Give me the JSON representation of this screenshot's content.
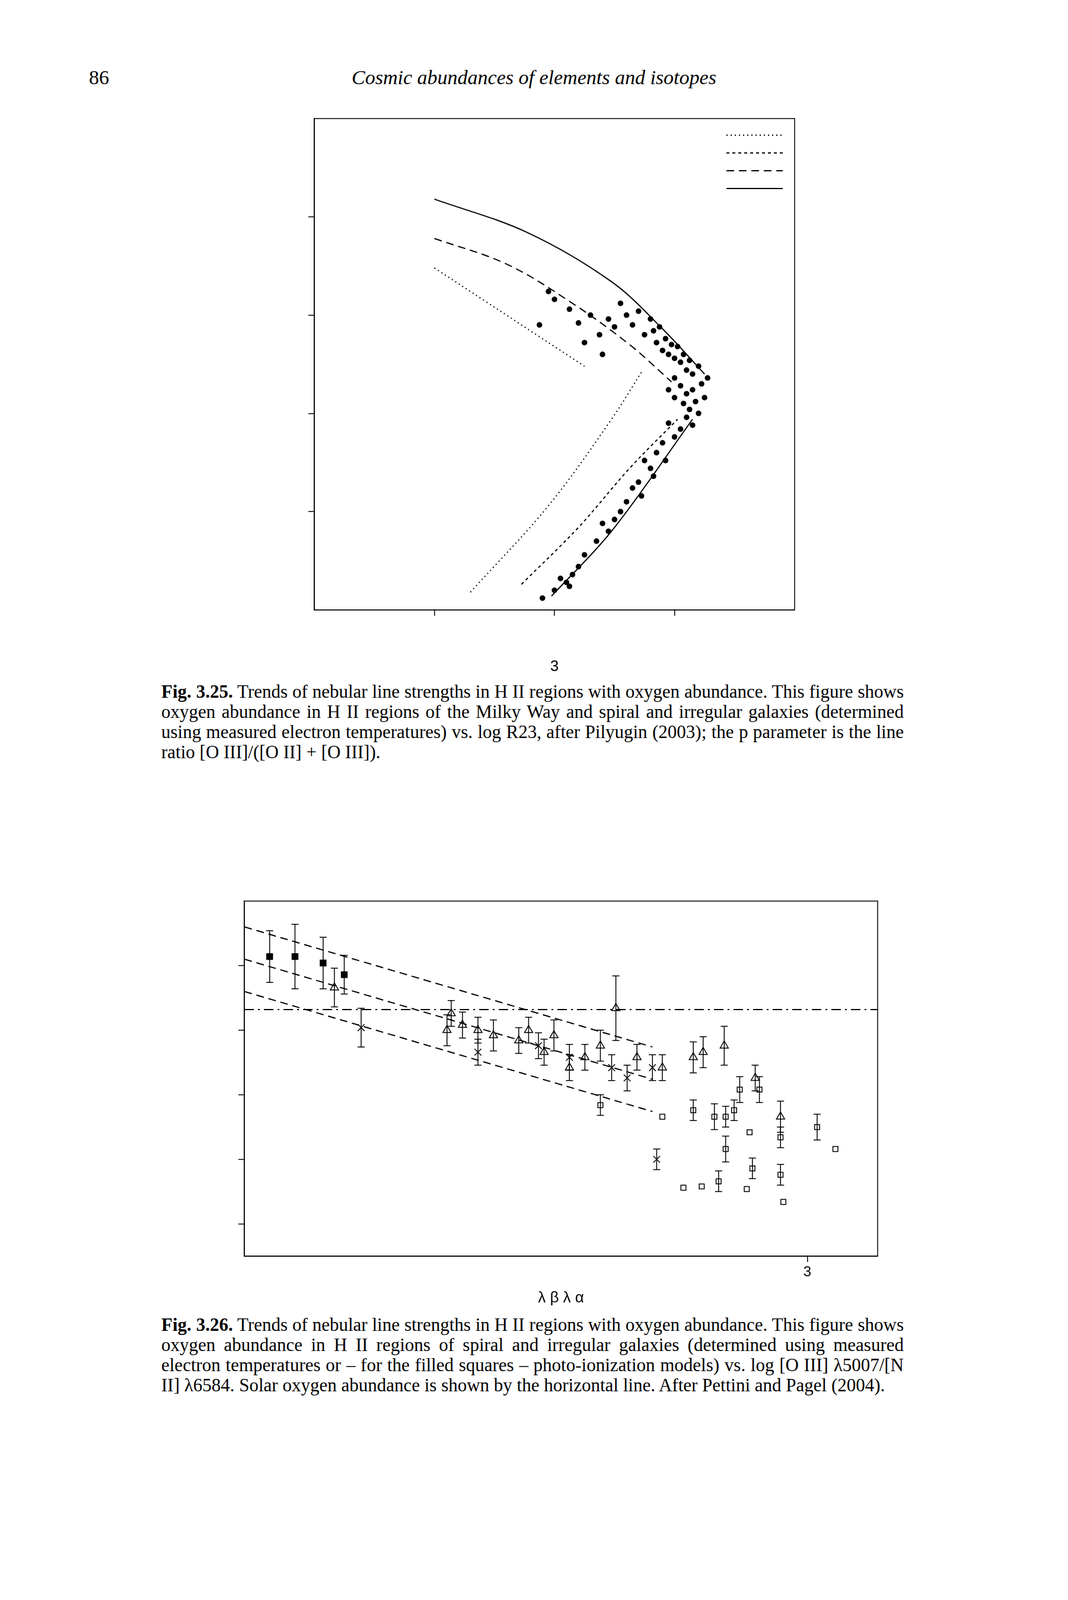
{
  "header": {
    "page_number": "86",
    "title": "Cosmic abundances of elements and isotopes"
  },
  "chart_data": [
    {
      "type": "scatter",
      "xlabel": "3",
      "xlim": [
        -0.4,
        1.2
      ],
      "ylim": [
        7.0,
        9.5
      ],
      "xticks": [
        0,
        0.4,
        0.8
      ],
      "yticks": [
        7.5,
        8,
        8.5,
        9
      ],
      "tick_labels": false,
      "grid": false,
      "legend": "upper right",
      "caption": {
        "label": "Fig. 3.25.",
        "text": "Trends of nebular line strengths in H II regions with oxygen abundance. This figure shows oxygen abundance in H II regions of the Milky Way and spiral and irregular galaxies (determined using measured electron temperatures) vs. log R23, after Pilyugin (2003); the p parameter is the line ratio [O III]/([O II] + [O III])."
      },
      "series": [
        {
          "type": "scatter",
          "marker": "filled_circle",
          "color": "#000000",
          "x": [
            0.38,
            0.4,
            0.45,
            0.48,
            0.52,
            0.55,
            0.58,
            0.6,
            0.62,
            0.64,
            0.66,
            0.68,
            0.7,
            0.72,
            0.73,
            0.74,
            0.75,
            0.76,
            0.77,
            0.78,
            0.79,
            0.8,
            0.81,
            0.82,
            0.83,
            0.84,
            0.85,
            0.86,
            0.88,
            0.35,
            0.5,
            0.56,
            0.8,
            0.82,
            0.84,
            0.86,
            0.87,
            0.89,
            0.9,
            0.85,
            0.83,
            0.88,
            0.8,
            0.78,
            0.91,
            0.84,
            0.86,
            0.82,
            0.8,
            0.78,
            0.76,
            0.74,
            0.77,
            0.72,
            0.7,
            0.73,
            0.68,
            0.66,
            0.69,
            0.64,
            0.62,
            0.6,
            0.58,
            0.56,
            0.54,
            0.5,
            0.48,
            0.46,
            0.44,
            0.42,
            0.4,
            0.45,
            0.36
          ],
          "values": [
            8.62,
            8.58,
            8.53,
            8.46,
            8.5,
            8.4,
            8.48,
            8.44,
            8.56,
            8.5,
            8.45,
            8.52,
            8.4,
            8.48,
            8.42,
            8.36,
            8.44,
            8.32,
            8.38,
            8.3,
            8.35,
            8.28,
            8.34,
            8.26,
            8.3,
            8.22,
            8.27,
            8.2,
            8.24,
            8.45,
            8.36,
            8.3,
            8.18,
            8.14,
            8.1,
            8.12,
            8.06,
            8.15,
            8.08,
            8.02,
            8.05,
            8.0,
            8.08,
            8.12,
            8.18,
            7.98,
            7.94,
            7.92,
            7.88,
            7.95,
            7.85,
            7.8,
            7.76,
            7.72,
            7.76,
            7.68,
            7.65,
            7.62,
            7.58,
            7.55,
            7.5,
            7.46,
            7.4,
            7.44,
            7.35,
            7.28,
            7.22,
            7.18,
            7.14,
            7.16,
            7.1,
            7.12,
            7.06
          ]
        },
        {
          "type": "line",
          "line_style": "dotted",
          "color": "#000000",
          "x": [
            0.0,
            0.17,
            0.34,
            0.5
          ],
          "values": [
            8.74,
            8.57,
            8.4,
            8.24
          ]
        },
        {
          "type": "line",
          "line_style": "dotted",
          "color": "#000000",
          "x": [
            0.12,
            0.38,
            0.59,
            0.69
          ],
          "values": [
            7.09,
            7.53,
            7.97,
            8.21
          ]
        },
        {
          "type": "line",
          "line_style": "short_dashed",
          "color": "#000000",
          "x": [
            0.29,
            0.48,
            0.65,
            0.81
          ],
          "values": [
            7.13,
            7.42,
            7.72,
            7.97
          ]
        },
        {
          "type": "line",
          "line_style": "dashed",
          "color": "#000000",
          "x": [
            0.0,
            0.24,
            0.45,
            0.65,
            0.79
          ],
          "values": [
            8.89,
            8.76,
            8.57,
            8.35,
            8.16
          ]
        },
        {
          "type": "line",
          "line_style": "solid",
          "color": "#000000",
          "x": [
            0.0,
            0.31,
            0.59,
            0.76,
            0.9
          ],
          "values": [
            9.09,
            8.92,
            8.67,
            8.43,
            8.2
          ]
        },
        {
          "type": "line",
          "line_style": "solid",
          "color": "#000000",
          "x": [
            0.39,
            0.59,
            0.86
          ],
          "values": [
            7.07,
            7.4,
            7.97
          ]
        }
      ]
    },
    {
      "type": "scatter",
      "xlabel": "λ β λ α",
      "xlim": [
        -1,
        3.5
      ],
      "ylim": [
        6.75,
        9.5
      ],
      "xticks": [
        3
      ],
      "yticks": [
        7,
        7.5,
        8,
        8.5,
        9
      ],
      "tick_labels": "x",
      "grid": false,
      "caption": {
        "label": "Fig. 3.26.",
        "text": "Trends of nebular line strengths in H II regions with oxygen abundance. This figure shows oxygen abundance in H II regions of spiral and irregular galaxies (determined using measured electron temperatures or – for the filled squares – photo-ionization models) vs. log [O III] λ5007/[N II] λ6584. Solar oxygen abundance is shown by the horizontal line. After Pettini and Pagel (2004)."
      },
      "series": [
        {
          "type": "line",
          "line_style": "dash-dot",
          "color": "#000000",
          "x": [
            -1,
            3.5
          ],
          "values": [
            8.66,
            8.66
          ]
        },
        {
          "type": "line",
          "line_style": "dashed",
          "color": "#000000",
          "x": [
            -1,
            1.9
          ],
          "values": [
            9.3,
            8.37
          ]
        },
        {
          "type": "line",
          "line_style": "dashed",
          "color": "#000000",
          "x": [
            -1,
            1.9
          ],
          "values": [
            9.05,
            8.12
          ]
        },
        {
          "type": "line",
          "line_style": "dashed",
          "color": "#000000",
          "x": [
            -1,
            1.9
          ],
          "values": [
            8.8,
            7.87
          ]
        },
        {
          "type": "scatter",
          "marker": "filled_square",
          "color": "#000000",
          "x": [
            -0.82,
            -0.64,
            -0.44,
            -0.29
          ],
          "values": [
            9.07,
            9.07,
            9.02,
            8.93
          ],
          "y_errors": [
            0.2,
            0.25,
            0.2,
            0.15
          ]
        },
        {
          "type": "scatter",
          "marker": "open_triangle",
          "color": "#000000",
          "x": [
            -0.36,
            0.44,
            0.55,
            0.66,
            0.77,
            0.95,
            1.13,
            1.2,
            1.31,
            1.42,
            1.53,
            1.64,
            1.79,
            1.97,
            2.19,
            2.41,
            2.63,
            2.81,
            0.47,
            1.02,
            2.26
          ],
          "values": [
            8.83,
            8.5,
            8.54,
            8.5,
            8.46,
            8.42,
            8.33,
            8.46,
            8.21,
            8.29,
            8.38,
            8.67,
            8.29,
            8.21,
            8.29,
            8.38,
            8.13,
            7.83,
            8.63,
            8.5,
            8.33
          ],
          "y_errors": [
            0.15,
            0.12,
            0.1,
            0.1,
            0.12,
            0.1,
            0.1,
            0.12,
            0.1,
            0.1,
            0.12,
            0.25,
            0.1,
            0.1,
            0.12,
            0.15,
            0.1,
            0.12,
            0.1,
            0.1,
            0.12
          ]
        },
        {
          "type": "scatter",
          "marker": "x",
          "color": "#000000",
          "x": [
            -0.17,
            0.66,
            1.09,
            1.31,
            1.61,
            1.9,
            1.93,
            1.72
          ],
          "values": [
            8.52,
            8.33,
            8.38,
            8.29,
            8.21,
            8.21,
            7.5,
            8.13
          ],
          "y_errors": [
            0.15,
            0.1,
            0.1,
            0.1,
            0.1,
            0.1,
            0.08,
            0.1
          ]
        },
        {
          "type": "scatter",
          "marker": "open_square",
          "color": "#000000",
          "x": [
            1.53,
            1.97,
            2.19,
            2.34,
            2.48,
            2.59,
            2.66,
            2.81,
            3.07,
            3.2,
            2.12,
            2.25,
            2.37,
            2.42,
            2.57,
            2.61,
            2.81,
            2.83,
            2.42,
            2.52
          ],
          "values": [
            7.92,
            7.83,
            7.88,
            7.83,
            7.88,
            7.71,
            8.04,
            7.67,
            7.75,
            7.58,
            7.28,
            7.29,
            7.33,
            7.58,
            7.27,
            7.43,
            7.38,
            7.17,
            7.83,
            8.04
          ],
          "y_errors": [
            0.08,
            null,
            0.08,
            0.1,
            0.08,
            null,
            0.1,
            0.08,
            0.1,
            null,
            null,
            null,
            0.08,
            0.1,
            null,
            0.08,
            0.08,
            null,
            0.08,
            0.1
          ]
        }
      ]
    }
  ]
}
